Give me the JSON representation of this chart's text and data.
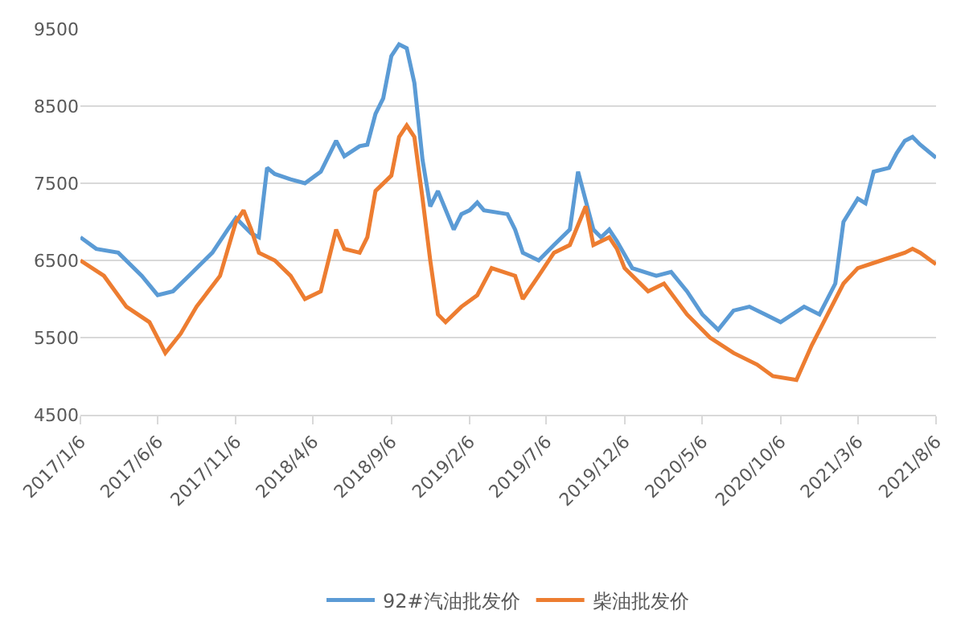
{
  "chart_data": {
    "type": "line",
    "series": [
      {
        "name": "92#汽油批发价",
        "color": "#5b9bd5",
        "x": [
          "2017-01-06",
          "2017-02-06",
          "2017-03-21",
          "2017-05-06",
          "2017-06-06",
          "2017-07-06",
          "2017-08-06",
          "2017-09-21",
          "2017-10-21",
          "2017-11-06",
          "2017-12-06",
          "2017-12-21",
          "2018-01-06",
          "2018-01-21",
          "2018-02-21",
          "2018-03-21",
          "2018-04-21",
          "2018-05-21",
          "2018-06-06",
          "2018-07-06",
          "2018-07-21",
          "2018-08-06",
          "2018-08-21",
          "2018-09-06",
          "2018-09-21",
          "2018-10-06",
          "2018-10-21",
          "2018-11-06",
          "2018-11-21",
          "2018-12-06",
          "2019-01-06",
          "2019-01-21",
          "2019-02-06",
          "2019-02-21",
          "2019-03-06",
          "2019-04-21",
          "2019-05-06",
          "2019-05-21",
          "2019-06-21",
          "2019-07-21",
          "2019-08-21",
          "2019-09-06",
          "2019-10-06",
          "2019-10-21",
          "2019-11-06",
          "2019-11-21",
          "2019-12-21",
          "2020-02-06",
          "2020-03-06",
          "2020-04-06",
          "2020-05-06",
          "2020-06-06",
          "2020-07-06",
          "2020-08-06",
          "2020-09-06",
          "2020-10-06",
          "2020-11-21",
          "2020-12-21",
          "2021-01-21",
          "2021-02-06",
          "2021-03-06",
          "2021-03-21",
          "2021-04-06",
          "2021-05-06",
          "2021-05-21",
          "2021-06-06",
          "2021-06-21",
          "2021-07-06",
          "2021-08-06"
        ],
        "values": [
          6800,
          6650,
          6600,
          6300,
          6050,
          6100,
          6300,
          6600,
          6900,
          7050,
          6850,
          6800,
          7700,
          7620,
          7550,
          7500,
          7650,
          8050,
          7850,
          7980,
          8000,
          8400,
          8600,
          9150,
          9300,
          9250,
          8800,
          7800,
          7200,
          7400,
          6900,
          7100,
          7150,
          7250,
          7150,
          7100,
          6900,
          6600,
          6500,
          6700,
          6900,
          7650,
          6900,
          6800,
          6900,
          6750,
          6400,
          6300,
          6350,
          6100,
          5800,
          5600,
          5850,
          5900,
          5800,
          5700,
          5900,
          5800,
          6200,
          7000,
          7300,
          7240,
          7650,
          7700,
          7890,
          8050,
          8100,
          8000,
          7830
        ]
      },
      {
        "name": "柴油批发价",
        "color": "#ed7d31",
        "x": [
          "2017-01-06",
          "2017-02-21",
          "2017-04-06",
          "2017-05-21",
          "2017-06-21",
          "2017-07-21",
          "2017-08-21",
          "2017-10-06",
          "2017-11-06",
          "2017-11-21",
          "2017-12-06",
          "2017-12-21",
          "2018-01-21",
          "2018-02-21",
          "2018-03-21",
          "2018-04-21",
          "2018-05-21",
          "2018-06-06",
          "2018-07-06",
          "2018-07-21",
          "2018-08-06",
          "2018-09-06",
          "2018-09-21",
          "2018-10-06",
          "2018-10-21",
          "2018-11-06",
          "2018-11-21",
          "2018-12-06",
          "2018-12-21",
          "2019-01-21",
          "2019-02-21",
          "2019-03-21",
          "2019-05-06",
          "2019-05-21",
          "2019-06-21",
          "2019-07-21",
          "2019-08-21",
          "2019-09-21",
          "2019-10-06",
          "2019-11-06",
          "2019-11-21",
          "2019-12-06",
          "2020-01-21",
          "2020-02-21",
          "2020-04-06",
          "2020-05-21",
          "2020-07-06",
          "2020-08-21",
          "2020-09-21",
          "2020-11-06",
          "2020-12-06",
          "2021-01-06",
          "2021-02-06",
          "2021-03-06",
          "2021-04-21",
          "2021-06-06",
          "2021-06-21",
          "2021-07-06",
          "2021-08-06"
        ],
        "values": [
          6500,
          6300,
          5900,
          5700,
          5300,
          5550,
          5900,
          6300,
          7000,
          7150,
          6900,
          6600,
          6500,
          6300,
          6000,
          6100,
          6900,
          6650,
          6600,
          6800,
          7400,
          7600,
          8100,
          8250,
          8100,
          7300,
          6500,
          5800,
          5700,
          5900,
          6050,
          6400,
          6300,
          6000,
          6300,
          6600,
          6700,
          7200,
          6700,
          6800,
          6650,
          6400,
          6100,
          6200,
          5800,
          5500,
          5300,
          5150,
          5000,
          4950,
          5400,
          5800,
          6200,
          6400,
          6500,
          6600,
          6650,
          6600,
          6450
        ]
      }
    ],
    "xlim": [
      "2017-01-06",
      "2021-08-06"
    ],
    "xticks": [
      {
        "value": "2017-01-06",
        "label": "2017/1/6"
      },
      {
        "value": "2017-06-06",
        "label": "2017/6/6"
      },
      {
        "value": "2017-11-06",
        "label": "2017/11/6"
      },
      {
        "value": "2018-04-06",
        "label": "2018/4/6"
      },
      {
        "value": "2018-09-06",
        "label": "2018/9/6"
      },
      {
        "value": "2019-02-06",
        "label": "2019/2/6"
      },
      {
        "value": "2019-07-06",
        "label": "2019/7/6"
      },
      {
        "value": "2019-12-06",
        "label": "2019/12/6"
      },
      {
        "value": "2020-05-06",
        "label": "2020/5/6"
      },
      {
        "value": "2020-10-06",
        "label": "2020/10/6"
      },
      {
        "value": "2021-03-06",
        "label": "2021/3/6"
      },
      {
        "value": "2021-08-06",
        "label": "2021/8/6"
      }
    ],
    "ylim": [
      4500,
      9500
    ],
    "yticks": [
      4500,
      5500,
      6500,
      7500,
      8500,
      9500
    ],
    "grid": "y",
    "legend": "bottom",
    "marker": "none",
    "line_style": "solid"
  }
}
